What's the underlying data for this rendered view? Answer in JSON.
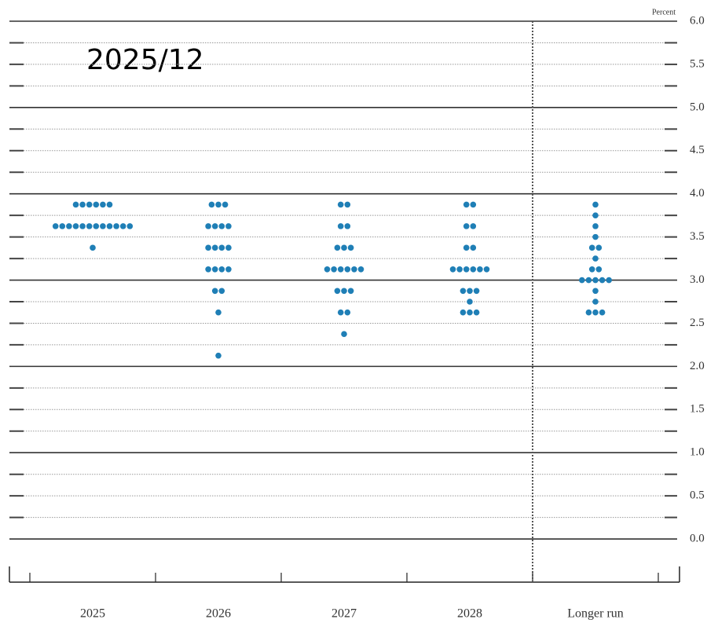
{
  "chart_data": {
    "type": "dot",
    "title": "2025/12",
    "ylabel": "Percent",
    "categories": [
      "2025",
      "2026",
      "2027",
      "2028",
      "Longer run"
    ],
    "dots": [
      [
        3.875,
        3.875,
        3.875,
        3.875,
        3.875,
        3.875,
        3.625,
        3.625,
        3.625,
        3.625,
        3.625,
        3.625,
        3.625,
        3.625,
        3.625,
        3.625,
        3.625,
        3.625,
        3.375
      ],
      [
        3.875,
        3.875,
        3.875,
        3.625,
        3.625,
        3.625,
        3.625,
        3.375,
        3.375,
        3.375,
        3.375,
        3.125,
        3.125,
        3.125,
        3.125,
        2.875,
        2.875,
        2.625,
        2.125
      ],
      [
        3.875,
        3.875,
        3.625,
        3.625,
        3.375,
        3.375,
        3.375,
        3.125,
        3.125,
        3.125,
        3.125,
        3.125,
        3.125,
        2.875,
        2.875,
        2.875,
        2.625,
        2.625,
        2.375
      ],
      [
        3.875,
        3.875,
        3.625,
        3.625,
        3.375,
        3.375,
        3.125,
        3.125,
        3.125,
        3.125,
        3.125,
        3.125,
        2.875,
        2.875,
        2.875,
        2.75,
        2.625,
        2.625,
        2.625
      ],
      [
        3.875,
        3.75,
        3.625,
        3.5,
        3.375,
        3.375,
        3.25,
        3.125,
        3.125,
        3,
        3,
        3,
        3,
        3,
        2.875,
        2.75,
        2.625,
        2.625,
        2.625
      ]
    ],
    "color": "#1f7fb6",
    "ylim": [
      -0.5,
      6
    ],
    "yticks": [
      {
        "value": 0,
        "label": "0.0"
      },
      0.5,
      {
        "value": 1,
        "label": "1.0"
      },
      1.5,
      {
        "value": 2,
        "label": "2.0"
      },
      2.5,
      {
        "value": 3,
        "label": "3.0"
      },
      3.5,
      {
        "value": 4,
        "label": "4.0"
      },
      4.5,
      {
        "value": 5,
        "label": "5.0"
      },
      5.5,
      {
        "value": 6,
        "label": "6.0"
      }
    ],
    "minor_yticks": [
      0.25,
      0.75,
      1.25,
      1.75,
      2.25,
      2.75,
      3.25,
      3.75,
      4.25,
      4.75,
      5.25,
      5.75
    ],
    "grid": true
  }
}
